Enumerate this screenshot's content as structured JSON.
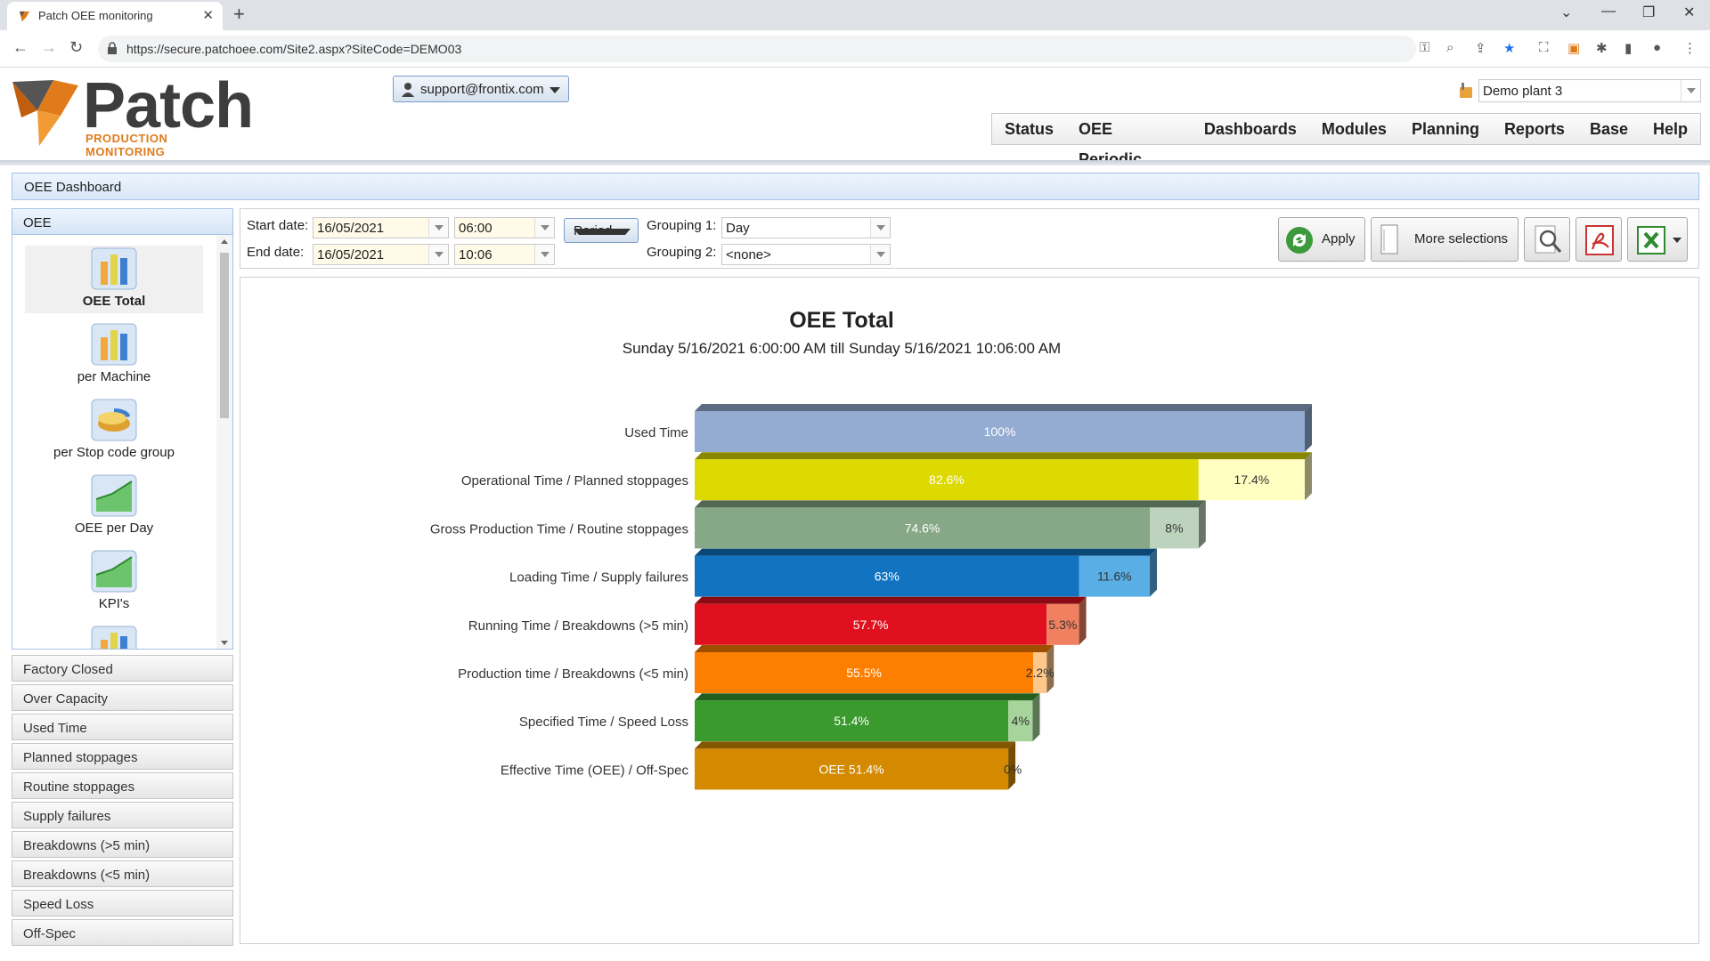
{
  "browser": {
    "tab_title": "Patch OEE monitoring",
    "url": "https://secure.patchoee.com/Site2.aspx?SiteCode=DEMO03"
  },
  "header": {
    "logo_word": "Patch",
    "logo_tagline": "PRODUCTION MONITORING",
    "user": "support@frontix.com",
    "plant": "Demo plant 3",
    "nav": [
      "Status",
      "OEE Periodic",
      "Dashboards",
      "Modules",
      "Planning",
      "Reports",
      "Base",
      "Help"
    ]
  },
  "dashboard_title": "OEE Dashboard",
  "left_panel": {
    "header": "OEE",
    "tiles": [
      {
        "label": "OEE Total",
        "icon": "bar-chart-icon",
        "selected": true
      },
      {
        "label": "per Machine",
        "icon": "bar-chart-icon",
        "selected": false
      },
      {
        "label": "per Stop code group",
        "icon": "pie-chart-icon",
        "selected": false
      },
      {
        "label": "OEE per Day",
        "icon": "area-chart-icon",
        "selected": false
      },
      {
        "label": "KPI's",
        "icon": "area-chart-icon",
        "selected": false
      }
    ],
    "sections": [
      "Factory Closed",
      "Over Capacity",
      "Used Time",
      "Planned stoppages",
      "Routine stoppages",
      "Supply failures",
      "Breakdowns (>5 min)",
      "Breakdowns (<5 min)",
      "Speed Loss",
      "Off-Spec"
    ]
  },
  "filter": {
    "start_label": "Start date:",
    "start_date": "16/05/2021",
    "start_time": "06:00",
    "end_label": "End date:",
    "end_date": "16/05/2021",
    "end_time": "10:06",
    "period_label": "Period",
    "grouping1_label": "Grouping 1:",
    "grouping1_value": "Day",
    "grouping2_label": "Grouping 2:",
    "grouping2_value": "<none>",
    "apply_label": "Apply",
    "more_label": "More selections"
  },
  "chart_data": {
    "type": "bar",
    "title": "OEE Total",
    "subtitle": "Sunday 5/16/2021 6:00:00 AM till Sunday 5/16/2021 10:06:00 AM",
    "categories": [
      "Used Time",
      "Operational Time / Planned stoppages",
      "Gross Production Time / Routine stoppages",
      "Loading Time / Supply failures",
      "Running Time / Breakdowns (>5 min)",
      "Production time / Breakdowns (<5 min)",
      "Specified Time / Speed Loss",
      "Effective Time (OEE) / Off-Spec"
    ],
    "series": [
      {
        "values": [
          100,
          82.6,
          74.6,
          63,
          57.7,
          55.5,
          51.4,
          51.4
        ],
        "labels": [
          "100%",
          "82.6%",
          "74.6%",
          "63%",
          "57.7%",
          "55.5%",
          "51.4%",
          "OEE 51.4%"
        ],
        "colors": [
          "#94acd2",
          "#dcda00",
          "#86a886",
          "#1274c0",
          "#e0101e",
          "#fd7f00",
          "#3a9a2e",
          "#d48a00"
        ]
      },
      {
        "values": [
          0,
          17.4,
          8,
          11.6,
          5.3,
          2.2,
          4,
          0
        ],
        "labels": [
          "",
          "17.4%",
          "8%",
          "11.6%",
          "5.3%",
          "2.2%",
          "4%",
          "0%"
        ],
        "colors": [
          "#94acd2",
          "#ffffc2",
          "#bdd3bd",
          "#5aaee6",
          "#f08060",
          "#ffc88a",
          "#a7d49a",
          "#f0c060"
        ]
      }
    ],
    "xlim": [
      0,
      100
    ],
    "grid": false,
    "legend": "none"
  }
}
